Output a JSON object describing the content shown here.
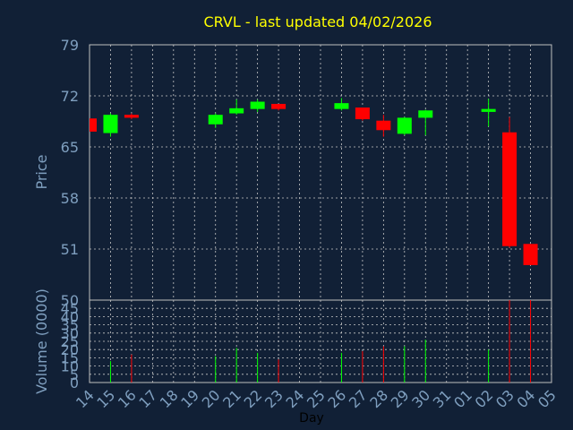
{
  "chart_data": [
    {
      "type": "candlestick",
      "title": "CRVL - last updated 04/02/2026",
      "ylabel": "Price",
      "ylim": [
        44,
        79
      ],
      "yticks": [
        79,
        72,
        65,
        58,
        51
      ],
      "grid": true,
      "colors": {
        "up": "#00ff00",
        "down": "#ff0000",
        "grid": "#c8c8c8",
        "text": "#7f9fbf",
        "title": "#ffff00",
        "frame": "#bfbfbf",
        "background": "#112036"
      },
      "candles": [
        {
          "day": "14",
          "open": 68.9,
          "high": 68.9,
          "low": 67.1,
          "close": 67.1
        },
        {
          "day": "15",
          "open": 66.9,
          "high": 69.6,
          "low": 66.4,
          "close": 69.4
        },
        {
          "day": "16",
          "open": 69.4,
          "high": 69.6,
          "low": 68.8,
          "close": 69.0
        },
        {
          "day": "20",
          "open": 68.1,
          "high": 69.6,
          "low": 67.6,
          "close": 69.4
        },
        {
          "day": "21",
          "open": 69.6,
          "high": 71.5,
          "low": 69.4,
          "close": 70.3
        },
        {
          "day": "22",
          "open": 70.2,
          "high": 71.5,
          "low": 69.8,
          "close": 71.2
        },
        {
          "day": "23",
          "open": 70.9,
          "high": 70.9,
          "low": 70.0,
          "close": 70.2
        },
        {
          "day": "26",
          "open": 70.2,
          "high": 71.7,
          "low": 70.0,
          "close": 71.0
        },
        {
          "day": "27",
          "open": 70.4,
          "high": 70.4,
          "low": 68.6,
          "close": 68.8
        },
        {
          "day": "28",
          "open": 68.6,
          "high": 69.4,
          "low": 66.4,
          "close": 67.3
        },
        {
          "day": "29",
          "open": 66.8,
          "high": 69.1,
          "low": 66.6,
          "close": 69.0
        },
        {
          "day": "30",
          "open": 69.0,
          "high": 70.1,
          "low": 66.6,
          "close": 70.0
        },
        {
          "day": "02",
          "open": 69.8,
          "high": 71.6,
          "low": 67.8,
          "close": 70.2
        },
        {
          "day": "03",
          "open": 67.0,
          "high": 69.1,
          "low": 51.2,
          "close": 51.4
        },
        {
          "day": "04",
          "open": 51.7,
          "high": 51.7,
          "low": 48.8,
          "close": 48.8
        }
      ]
    },
    {
      "type": "bar",
      "ylabel": "Volume (0000)",
      "xlabel": "Day",
      "ylim": [
        0,
        50
      ],
      "yticks": [
        50,
        45,
        40,
        35,
        30,
        25,
        20,
        15,
        10,
        5,
        0
      ],
      "categories": [
        "14",
        "15",
        "16",
        "17",
        "18",
        "19",
        "20",
        "21",
        "22",
        "23",
        "24",
        "25",
        "26",
        "27",
        "28",
        "29",
        "30",
        "31",
        "01",
        "02",
        "03",
        "04",
        "05"
      ],
      "bars": [
        {
          "day": "15",
          "value": 13,
          "direction": "up"
        },
        {
          "day": "16",
          "value": 17,
          "direction": "down"
        },
        {
          "day": "20",
          "value": 16,
          "direction": "up"
        },
        {
          "day": "21",
          "value": 21,
          "direction": "up"
        },
        {
          "day": "22",
          "value": 18,
          "direction": "up"
        },
        {
          "day": "23",
          "value": 14,
          "direction": "down"
        },
        {
          "day": "26",
          "value": 18,
          "direction": "up"
        },
        {
          "day": "27",
          "value": 19,
          "direction": "down"
        },
        {
          "day": "28",
          "value": 22,
          "direction": "down"
        },
        {
          "day": "29",
          "value": 22,
          "direction": "up"
        },
        {
          "day": "30",
          "value": 26,
          "direction": "up"
        },
        {
          "day": "02",
          "value": 20,
          "direction": "up"
        },
        {
          "day": "03",
          "value": 50,
          "direction": "down"
        },
        {
          "day": "04",
          "value": 50,
          "direction": "down"
        }
      ]
    }
  ]
}
